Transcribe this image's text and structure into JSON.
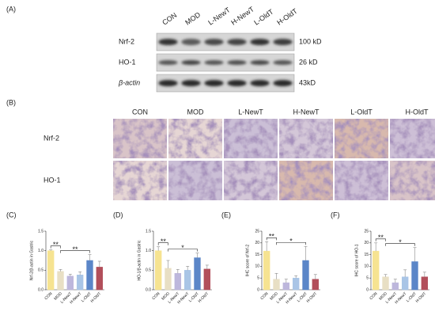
{
  "panel_labels": [
    "(A)",
    "(B)",
    "(C)",
    "(D)",
    "(E)",
    "(F)"
  ],
  "blot": {
    "lanes": [
      "CON",
      "MOD",
      "L-NewT",
      "H-NewT",
      "L-OldT",
      "H-OldT"
    ],
    "rows": [
      {
        "label": "Nrf-2",
        "size": "100 kD"
      },
      {
        "label": "HO-1",
        "size": "26 kD"
      },
      {
        "label": "β-actin",
        "size": "43kD"
      }
    ]
  },
  "ihc": {
    "columns": [
      "CON",
      "MOD",
      "L-NewT",
      "H-NewT",
      "L-OldT",
      "H-OldT"
    ],
    "rows": [
      "Nrf-2",
      "HO-1"
    ]
  },
  "chart_data": [
    {
      "type": "bar",
      "ylabel": "Nrf-2/β-actin in Gastric",
      "categories": [
        "CON",
        "MOD",
        "L-NewT",
        "H-NewT",
        "L-OldT",
        "H-OldT"
      ],
      "values": [
        1.0,
        0.47,
        0.35,
        0.38,
        0.75,
        0.58
      ],
      "errors": [
        0.02,
        0.05,
        0.05,
        0.08,
        0.15,
        0.15
      ],
      "colors": [
        "#f6e391",
        "#e8dfc4",
        "#bdb7dc",
        "#a9c5e6",
        "#5b86c8",
        "#b24f5b"
      ],
      "ylim": [
        0,
        1.5
      ],
      "yticks": [
        {
          "value": 0,
          "label": "0.0"
        },
        0.5,
        {
          "value": 1,
          "label": "1.0"
        },
        1.5
      ],
      "annotations": [
        {
          "text": "**",
          "from": 0,
          "to": 1
        },
        {
          "text": "**",
          "from": 1,
          "to": 4
        }
      ]
    },
    {
      "type": "bar",
      "ylabel": "HO-1/β-actin in Gastric",
      "categories": [
        "CON",
        "MOD",
        "L-NewT",
        "H-NewT",
        "L-OldT",
        "H-OldT"
      ],
      "values": [
        1.0,
        0.55,
        0.42,
        0.5,
        0.82,
        0.53
      ],
      "errors": [
        0.1,
        0.2,
        0.1,
        0.1,
        0.12,
        0.1
      ],
      "colors": [
        "#f6e391",
        "#e8dfc4",
        "#bdb7dc",
        "#a9c5e6",
        "#5b86c8",
        "#b24f5b"
      ],
      "ylim": [
        0,
        1.5
      ],
      "yticks": [
        {
          "value": 0,
          "label": "0.0"
        },
        0.5,
        {
          "value": 1,
          "label": "1.0"
        },
        1.5
      ],
      "annotations": [
        {
          "text": "**",
          "from": 0,
          "to": 1
        },
        {
          "text": "*",
          "from": 1,
          "to": 4
        }
      ]
    },
    {
      "type": "bar",
      "ylabel": "IHC score of Nrf-2",
      "categories": [
        "CON",
        "MOD",
        "L-NewT",
        "H-NewT",
        "L-OldT",
        "H-OldT"
      ],
      "values": [
        16.5,
        4.5,
        3,
        5,
        12.5,
        4.5
      ],
      "errors": [
        4,
        2.5,
        1.5,
        1,
        6,
        2
      ],
      "colors": [
        "#f6e391",
        "#e8dfc4",
        "#bdb7dc",
        "#a9c5e6",
        "#5b86c8",
        "#b24f5b"
      ],
      "ylim": [
        0,
        25
      ],
      "yticks": [
        0,
        5,
        10,
        15,
        20,
        25
      ],
      "annotations": [
        {
          "text": "**",
          "from": 0,
          "to": 1
        },
        {
          "text": "*",
          "from": 1,
          "to": 4
        }
      ]
    },
    {
      "type": "bar",
      "ylabel": "IHC score of HO-1",
      "categories": [
        "CON",
        "MOD",
        "L-NewT",
        "H-NewT",
        "L-OldT",
        "H-OldT"
      ],
      "values": [
        16.5,
        5.5,
        3,
        5.5,
        12,
        5.5
      ],
      "errors": [
        3.5,
        1,
        1.5,
        3,
        6,
        2
      ],
      "colors": [
        "#f6e391",
        "#e8dfc4",
        "#bdb7dc",
        "#a9c5e6",
        "#5b86c8",
        "#b24f5b"
      ],
      "ylim": [
        0,
        25
      ],
      "yticks": [
        0,
        5,
        10,
        15,
        20,
        25
      ],
      "annotations": [
        {
          "text": "**",
          "from": 0,
          "to": 1
        },
        {
          "text": "*",
          "from": 1,
          "to": 4
        }
      ]
    }
  ]
}
